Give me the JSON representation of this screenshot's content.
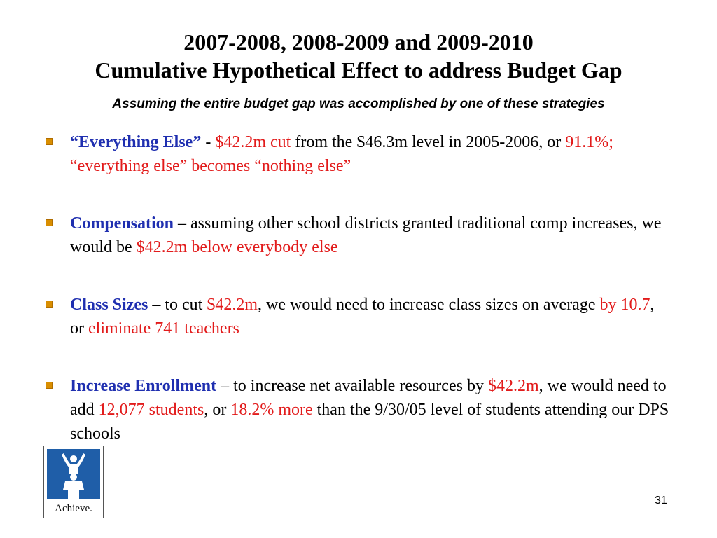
{
  "slide": {
    "title_line1": "2007-2008, 2008-2009 and 2009-2010",
    "title_line2": "Cumulative Hypothetical Effect to address Budget Gap",
    "subtitle": {
      "a": "Assuming the ",
      "b": "entire budget gap",
      "c": " was accomplished by ",
      "d": "one",
      "e": " of these strategies"
    },
    "page_number": "31"
  },
  "bullets": [
    {
      "s1": "“Everything Else”",
      "s2": " - ",
      "s3": "$42.2m cut",
      "s4": " from the $46.3m level in 2005-2006, or ",
      "s5": "91.1%; “everything else” becomes “nothing else”"
    },
    {
      "s1": "Compensation",
      "s2": " – assuming other school districts granted traditional comp increases, we would be ",
      "s3": "$42.2m below everybody else"
    },
    {
      "s1": "Class Sizes",
      "s2": " – to cut ",
      "s3": "$42.2m",
      "s4": ", we would need to increase class sizes on average ",
      "s5": "by 10.7",
      "s6": ", or ",
      "s7": "eliminate 741 teachers"
    },
    {
      "s1": "Increase Enrollment",
      "s2": " – to increase net available resources by ",
      "s3": "$42.2m",
      "s4": ", we would need to add ",
      "s5": "12,077 students",
      "s6": ", or ",
      "s7": "18.2% more",
      "s8": " than the 9/30/05 level of students attending our DPS schools"
    }
  ],
  "logo": {
    "text": "Achieve.",
    "icon": "adult-carrying-child-icon",
    "color": "#1f5ea8"
  },
  "colors": {
    "highlight_blue": "#1f2fb0",
    "highlight_red": "#e21b1b",
    "bullet_marker": "#d98e00"
  }
}
